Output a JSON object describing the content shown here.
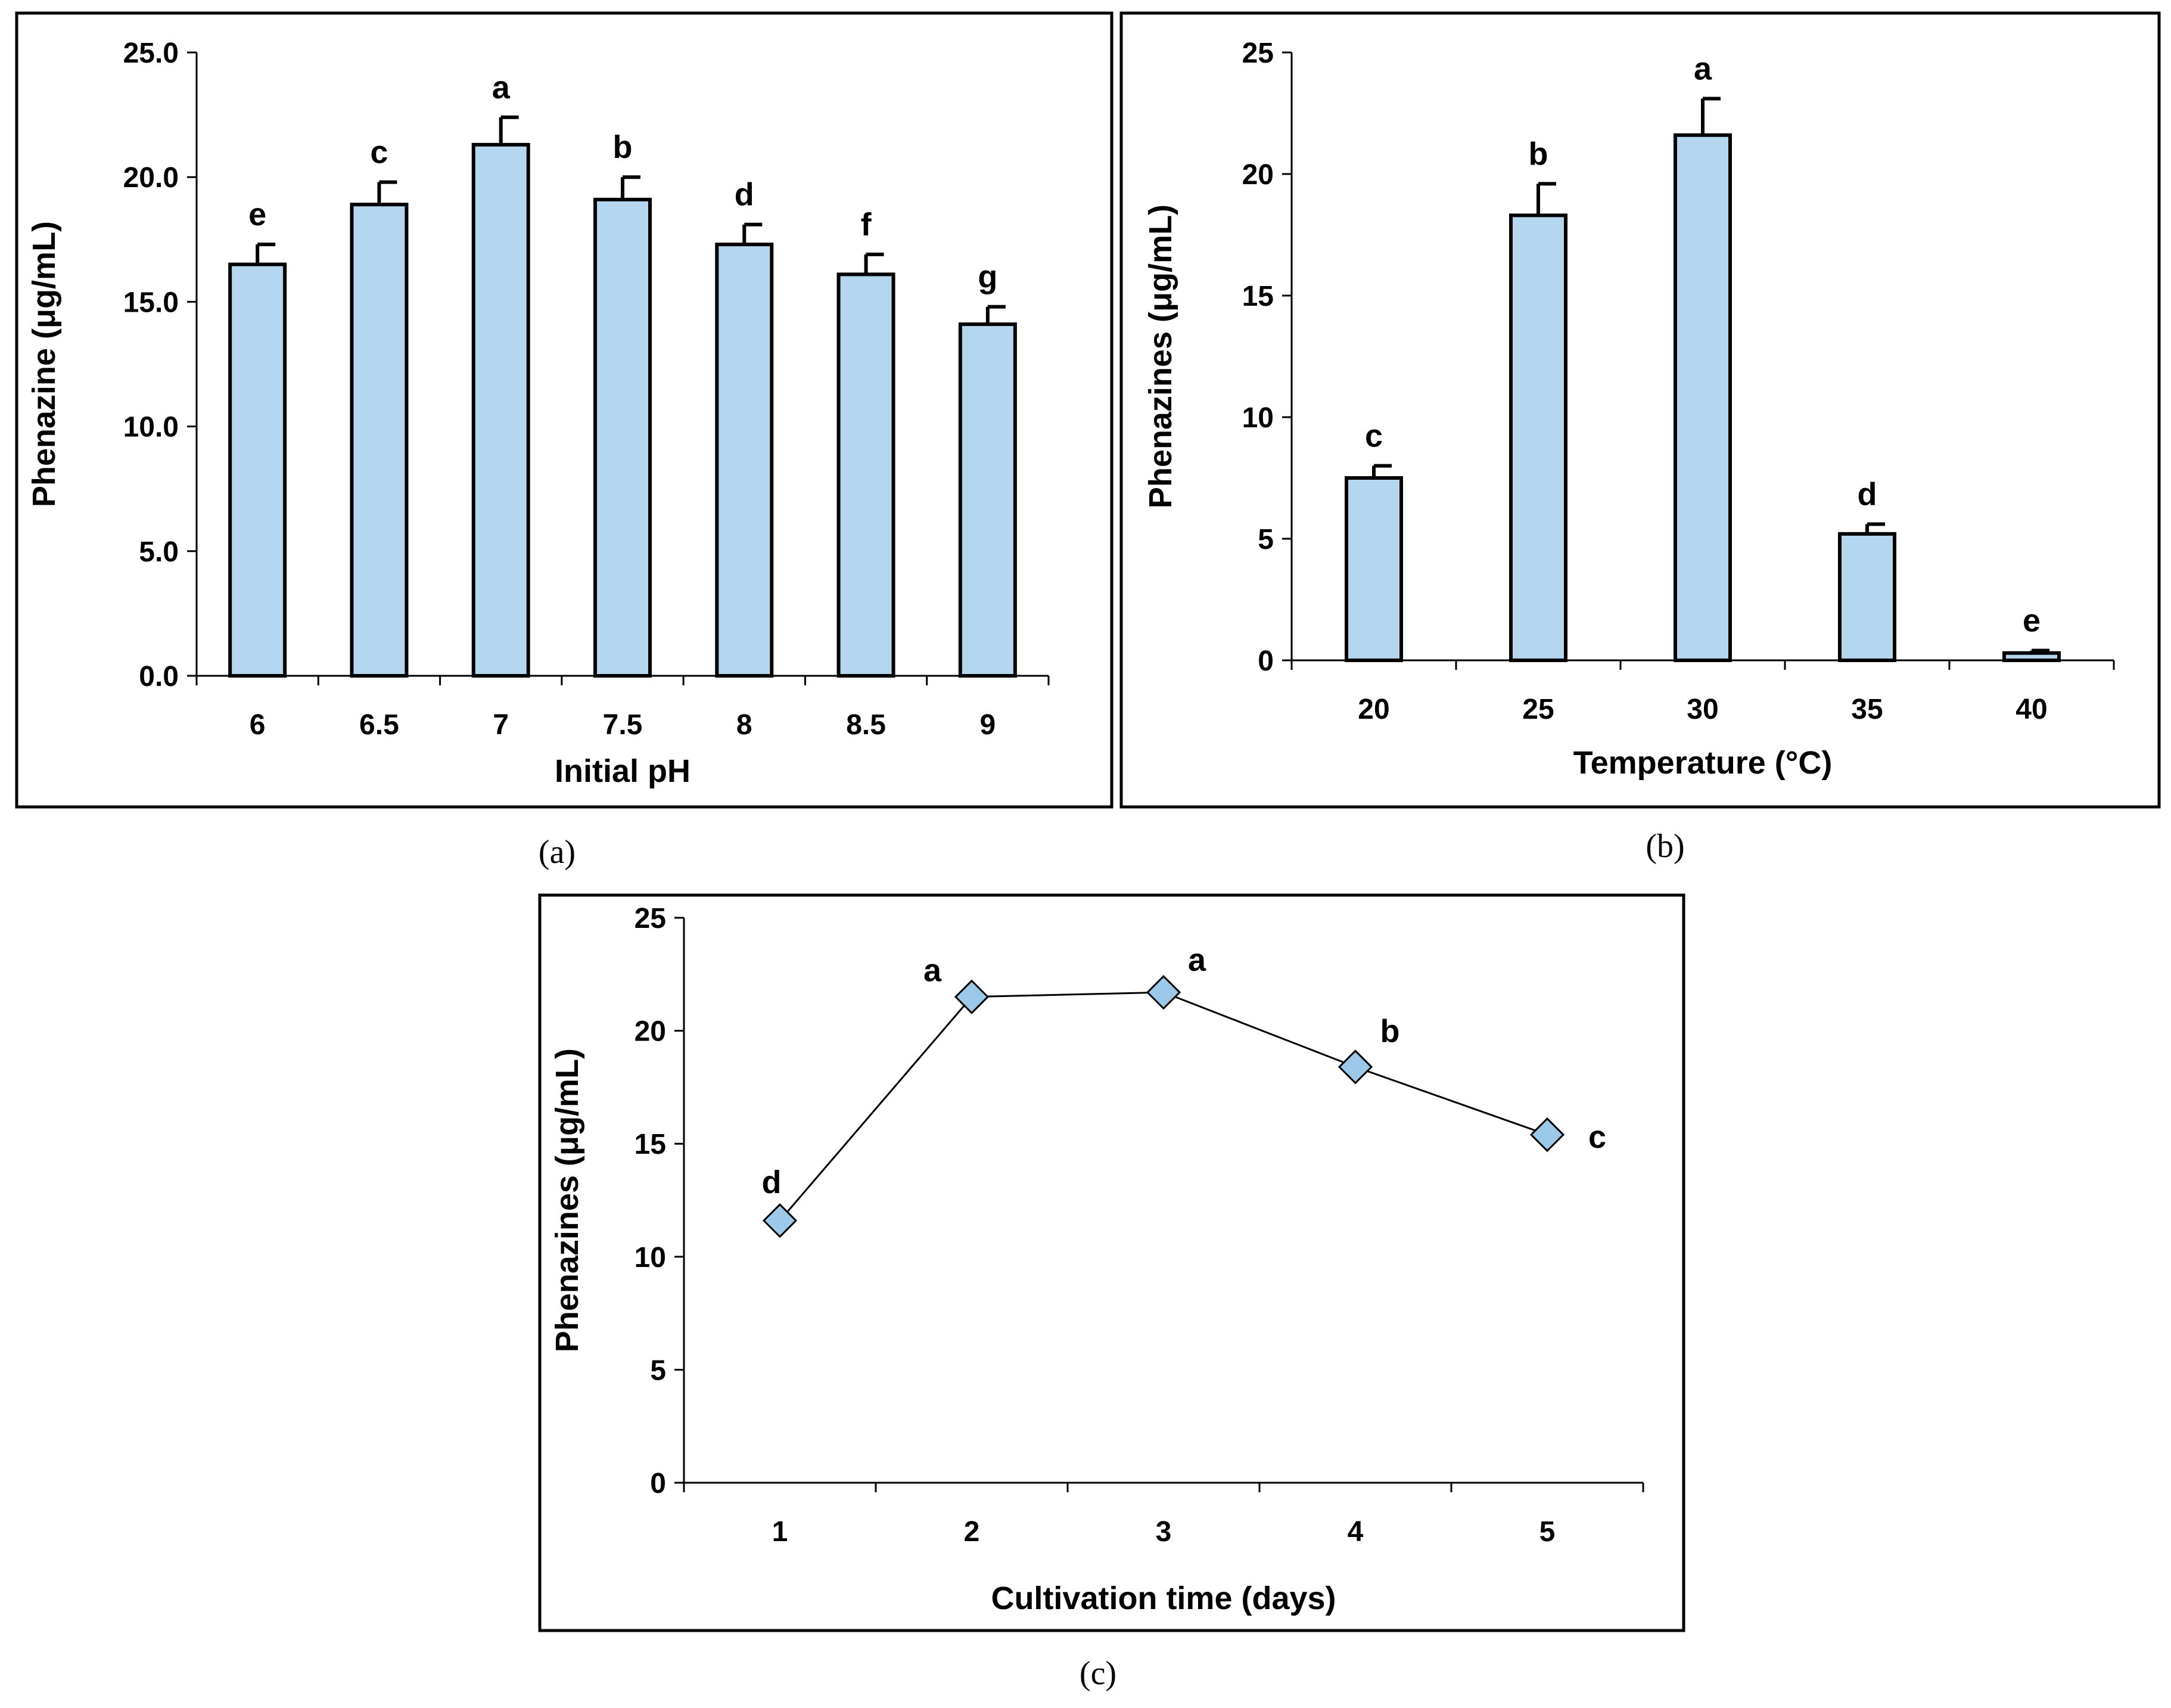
{
  "chart_data": [
    {
      "panel": "(a)",
      "type": "bar",
      "categories": [
        "6",
        "6.5",
        "7",
        "7.5",
        "8",
        "8.5",
        "9"
      ],
      "values": [
        16.5,
        18.9,
        21.3,
        19.1,
        17.3,
        16.1,
        14.1
      ],
      "errors": [
        0.8,
        0.9,
        1.1,
        0.9,
        0.8,
        0.8,
        0.7
      ],
      "letters": [
        "e",
        "c",
        "a",
        "b",
        "d",
        "f",
        "g"
      ],
      "xlabel": "Initial pH",
      "ylabel": "Phenazine (μg/mL)",
      "ylim": [
        0,
        25
      ],
      "yticks": [
        "0.0",
        "5.0",
        "10.0",
        "15.0",
        "20.0",
        "25.0"
      ]
    },
    {
      "panel": "(b)",
      "type": "bar",
      "categories": [
        "20",
        "25",
        "30",
        "35",
        "40"
      ],
      "values": [
        7.5,
        18.3,
        21.6,
        5.2,
        0.3
      ],
      "errors": [
        0.5,
        1.3,
        1.5,
        0.4,
        0.1
      ],
      "letters": [
        "c",
        "b",
        "a",
        "d",
        "e"
      ],
      "xlabel": "Temperature (°C)",
      "ylabel": "Phenazines (μg/mL)",
      "ylim": [
        0,
        25
      ],
      "yticks": [
        "0",
        "5",
        "10",
        "15",
        "20",
        "25"
      ]
    },
    {
      "panel": "(c)",
      "type": "line",
      "categories": [
        "1",
        "2",
        "3",
        "4",
        "5"
      ],
      "values": [
        11.6,
        21.5,
        21.7,
        18.4,
        15.4
      ],
      "letters": [
        "d",
        "a",
        "a",
        "b",
        "c"
      ],
      "xlabel": "Cultivation time (days)",
      "ylabel": "Phenazines (μg/mL)",
      "ylim": [
        0,
        25
      ],
      "yticks": [
        "0",
        "5",
        "10",
        "15",
        "20",
        "25"
      ]
    }
  ]
}
